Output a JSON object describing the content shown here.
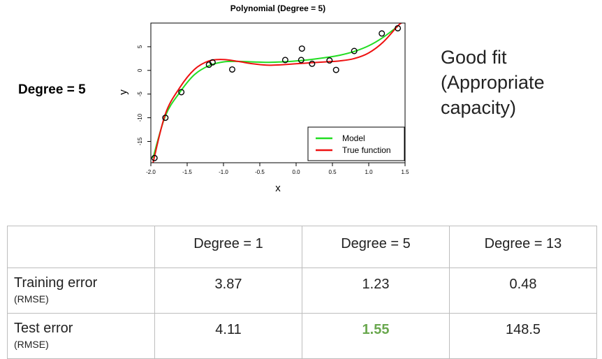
{
  "side_label": "Degree = 5",
  "note_lines": [
    "Good fit",
    "(Appropriate",
    "capacity)"
  ],
  "chart_data": {
    "type": "scatter",
    "title": "Polynomial (Degree = 5)",
    "xlabel": "x",
    "ylabel": "y",
    "xlim": [
      -2.0,
      1.5
    ],
    "ylim": [
      -19.5,
      10.0
    ],
    "x_ticks": [
      "-2.0",
      "-1.5",
      "-1.0",
      "-0.5",
      "0.0",
      "0.5",
      "1.0",
      "1.5"
    ],
    "y_ticks": [
      "-15",
      "-10",
      "-5",
      "0",
      "5"
    ],
    "legend_position": "bottom-right",
    "points": [
      {
        "x": -1.95,
        "y": -18.5
      },
      {
        "x": -1.8,
        "y": -10.0
      },
      {
        "x": -1.58,
        "y": -4.6
      },
      {
        "x": -1.2,
        "y": 1.2
      },
      {
        "x": -1.15,
        "y": 1.7
      },
      {
        "x": -0.88,
        "y": 0.2
      },
      {
        "x": -0.15,
        "y": 2.2
      },
      {
        "x": 0.07,
        "y": 2.2
      },
      {
        "x": 0.08,
        "y": 4.6
      },
      {
        "x": 0.22,
        "y": 1.4
      },
      {
        "x": 0.46,
        "y": 2.1
      },
      {
        "x": 0.55,
        "y": 0.1
      },
      {
        "x": 0.8,
        "y": 4.1
      },
      {
        "x": 1.18,
        "y": 7.8
      },
      {
        "x": 1.4,
        "y": 8.9
      }
    ],
    "series": [
      {
        "name": "Model",
        "color": "#22dd22",
        "x": [
          -1.97,
          -1.8,
          -1.6,
          -1.4,
          -1.2,
          -1.0,
          -0.8,
          -0.6,
          -0.4,
          -0.2,
          0.0,
          0.2,
          0.4,
          0.6,
          0.8,
          1.0,
          1.2,
          1.4
        ],
        "y": [
          -18.5,
          -9.6,
          -4.6,
          -0.9,
          1.0,
          1.8,
          1.9,
          1.8,
          1.7,
          1.8,
          2.0,
          2.3,
          2.7,
          3.2,
          4.0,
          5.2,
          7.0,
          9.3
        ]
      },
      {
        "name": "True function",
        "color": "#ee1111",
        "x": [
          -1.97,
          -1.8,
          -1.6,
          -1.4,
          -1.2,
          -1.0,
          -0.8,
          -0.6,
          -0.4,
          -0.2,
          0.0,
          0.2,
          0.4,
          0.6,
          0.8,
          1.0,
          1.2,
          1.4,
          1.45
        ],
        "y": [
          -19.5,
          -9.2,
          -3.6,
          0.2,
          2.0,
          2.3,
          1.9,
          1.4,
          1.1,
          1.2,
          1.4,
          1.6,
          1.8,
          2.0,
          2.5,
          3.7,
          6.0,
          9.4,
          10.0
        ]
      }
    ]
  },
  "table": {
    "headers": [
      "",
      "Degree = 1",
      "Degree = 5",
      "Degree = 13"
    ],
    "rows": [
      {
        "label": "Training error",
        "sublabel": "(RMSE)",
        "values": [
          "3.87",
          "1.23",
          "0.48"
        ]
      },
      {
        "label": "Test error",
        "sublabel": "(RMSE)",
        "values": [
          "4.11",
          "1.55",
          "148.5"
        ]
      }
    ],
    "highlight_color": "#6aa84f"
  }
}
